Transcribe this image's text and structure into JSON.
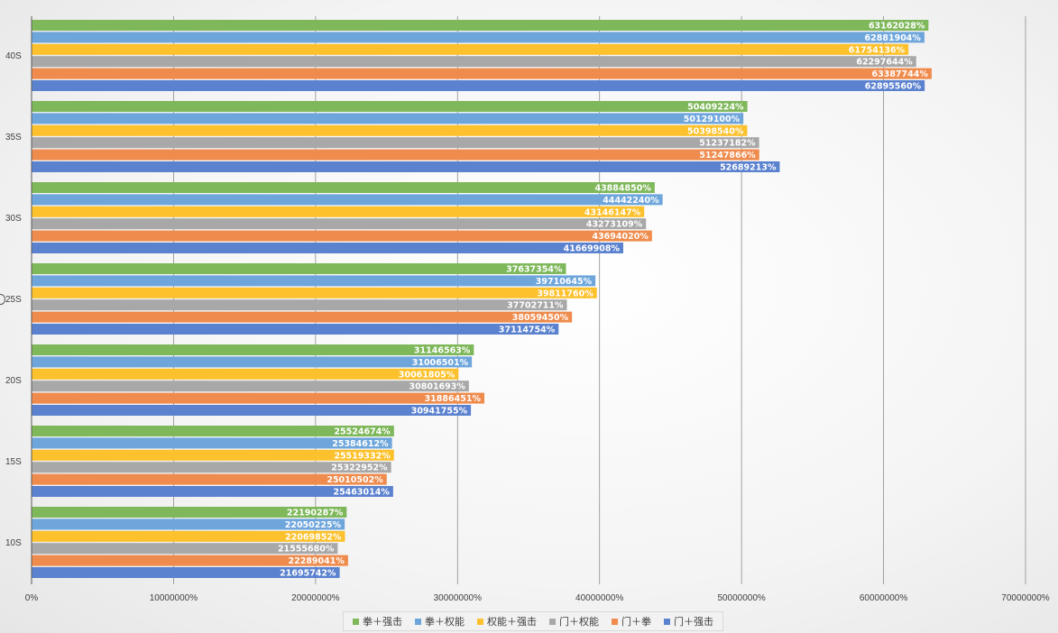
{
  "chart_data": {
    "type": "bar",
    "orientation": "horizontal",
    "categories": [
      "40S",
      "35S",
      "30S",
      "25S",
      "20S",
      "15S",
      "10S"
    ],
    "series": [
      {
        "name": "拳＋强击",
        "color": "#7fb85b",
        "values": [
          63162028,
          50409224,
          43884850,
          37637354,
          31146563,
          25524674,
          22190287
        ],
        "labels": [
          "63162028%",
          "50409224%",
          "43884850%",
          "37637354%",
          "31146563%",
          "25524674%",
          "22190287%"
        ]
      },
      {
        "name": "拳＋权能",
        "color": "#6ea6dc",
        "values": [
          62881904,
          50129100,
          44442240,
          39710645,
          31006501,
          25384612,
          22050225
        ],
        "labels": [
          "62881904%",
          "50129100%",
          "44442240%",
          "39710645%",
          "31006501%",
          "25384612%",
          "22050225%"
        ]
      },
      {
        "name": "权能＋强击",
        "color": "#fcc12c",
        "values": [
          61754136,
          50398540,
          43146147,
          39811760,
          30061805,
          25519332,
          22069852
        ],
        "labels": [
          "61754136%",
          "50398540%",
          "43146147%",
          "39811760%",
          "30061805%",
          "25519332%",
          "22069852%"
        ]
      },
      {
        "name": "门＋权能",
        "color": "#a8a8a8",
        "values": [
          62297644,
          51237182,
          43273109,
          37702711,
          30801693,
          25322952,
          21555680
        ],
        "labels": [
          "62297644%",
          "51237182%",
          "43273109%",
          "37702711%",
          "30801693%",
          "25322952%",
          "21555680%"
        ]
      },
      {
        "name": "门＋拳",
        "color": "#ef8b4c",
        "values": [
          63387744,
          51247866,
          43694020,
          38059450,
          31886451,
          25010502,
          22289041
        ],
        "labels": [
          "63387744%",
          "51247866%",
          "43694020%",
          "38059450%",
          "31886451%",
          "25010502%",
          "22289041%"
        ]
      },
      {
        "name": "门＋强击",
        "color": "#5b82cf",
        "values": [
          62895560,
          52689213,
          41669908,
          37114754,
          30941755,
          25463014,
          21695742
        ],
        "labels": [
          "62895560%",
          "52689213%",
          "41669908%",
          "37114754%",
          "30941755%",
          "25463014%",
          "21695742%"
        ]
      }
    ],
    "xlim": [
      0,
      70000000
    ],
    "x_ticks": [
      "0%",
      "10000000%",
      "20000000%",
      "30000000%",
      "40000000%",
      "50000000%",
      "60000000%",
      "70000000%"
    ],
    "grid": "vertical",
    "legend": "bottom"
  }
}
